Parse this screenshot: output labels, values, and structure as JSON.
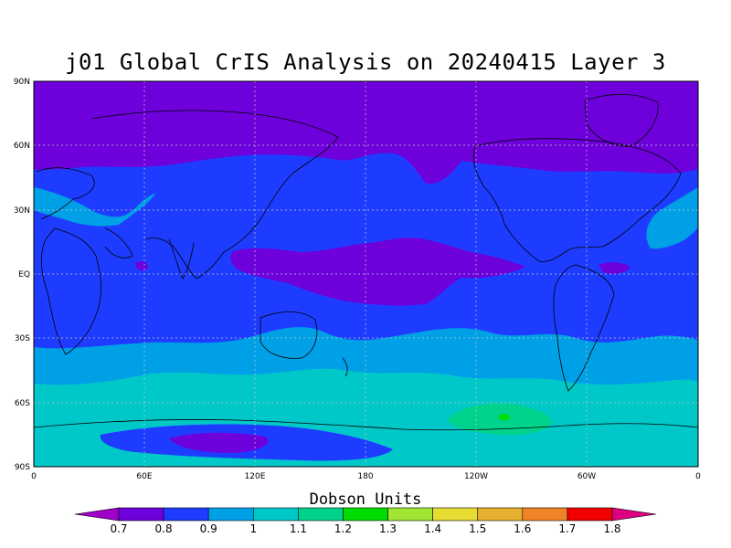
{
  "title": "j01 Global CrIS Analysis on 20240415 Layer 3",
  "colorbar_title": "Dobson Units",
  "lat_ticks": [
    "90N",
    "60N",
    "30N",
    "EQ",
    "30S",
    "60S",
    "90S"
  ],
  "lon_ticks": [
    "0",
    "60E",
    "120E",
    "180",
    "120W",
    "60W",
    "0"
  ],
  "colorbar": {
    "labels": [
      "0.7",
      "0.8",
      "0.9",
      "1",
      "1.1",
      "1.2",
      "1.3",
      "1.4",
      "1.5",
      "1.6",
      "1.7",
      "1.8"
    ],
    "colors": [
      "#a000c8",
      "#6e00dc",
      "#1e3cff",
      "#00a0e6",
      "#00c8c8",
      "#00d28c",
      "#00dc00",
      "#a0e632",
      "#e6dc32",
      "#e6af2d",
      "#f08228",
      "#f00000",
      "#dc0080"
    ]
  },
  "palette": {
    "background": "#1e3cff",
    "north_polar": "#6e00dc",
    "mid_band": "#00a0e6",
    "south_band": "#00c8c8",
    "high_max": "#00d28c",
    "peak": "#00dc00",
    "low_min": "#a000c8"
  }
}
